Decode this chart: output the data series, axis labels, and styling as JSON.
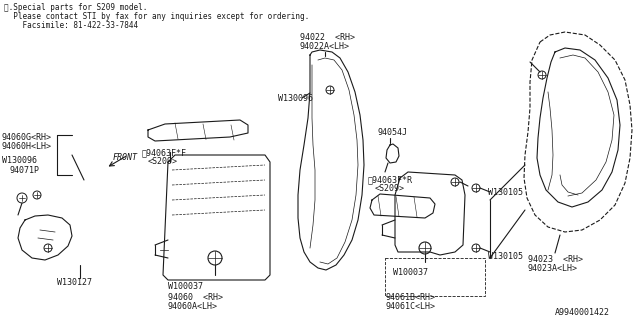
{
  "bg_color": "#ffffff",
  "line_color": "#1a1a1a",
  "text_color": "#1a1a1a",
  "title_lines": [
    "※.Special parts for S209 model.",
    "  Please contact STI by fax for any inquiries except for ordering.",
    "    Facsimile: 81-422-33-7844"
  ]
}
